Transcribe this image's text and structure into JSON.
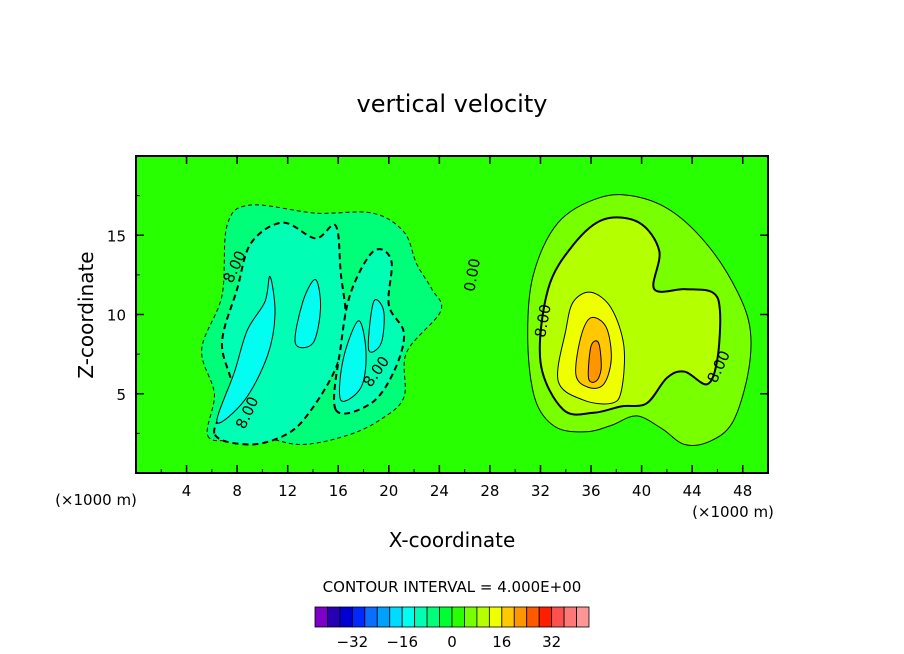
{
  "chart_data": {
    "type": "heatmap",
    "title": "vertical velocity",
    "xlabel": "X-coordinate",
    "ylabel": "Z-coordinate",
    "x_unit_label": "(×1000 m)",
    "x_unit_label_right": "(×1000 m)",
    "xlim": [
      0,
      50
    ],
    "ylim": [
      0,
      20
    ],
    "x_ticks": [
      4,
      8,
      12,
      16,
      20,
      24,
      28,
      32,
      36,
      40,
      44,
      48
    ],
    "y_ticks": [
      5,
      10,
      15
    ],
    "contour_interval_text": "CONTOUR INTERVAL = 4.000E+00",
    "contour_labels": [
      {
        "text": "8.00",
        "x": 7.8,
        "y": 13.0,
        "angle": -65
      },
      {
        "text": "0.00",
        "x": 26.6,
        "y": 12.5,
        "angle": -80
      },
      {
        "text": "8.00",
        "x": 32.2,
        "y": 9.6,
        "angle": -80
      },
      {
        "text": "8.00",
        "x": 19.0,
        "y": 6.4,
        "angle": -55
      },
      {
        "text": "8.00",
        "x": 8.8,
        "y": 3.8,
        "angle": -65
      },
      {
        "text": "8.00",
        "x": 46.1,
        "y": 6.7,
        "angle": -65
      }
    ],
    "colorbar": {
      "colors": [
        "#7d00c8",
        "#2800b4",
        "#0000d2",
        "#0028ff",
        "#0a6eff",
        "#00a0ff",
        "#00dcff",
        "#00fff0",
        "#00ffb4",
        "#00ff78",
        "#00ff32",
        "#28ff00",
        "#78ff00",
        "#b4ff00",
        "#f0ff00",
        "#ffc800",
        "#ff9600",
        "#ff5a00",
        "#ff1e00",
        "#ff5050",
        "#ff7878",
        "#ff9696"
      ],
      "tick_labels": [
        "-32",
        "-16",
        "0",
        "16",
        "32"
      ],
      "tick_values": [
        -32,
        -16,
        0,
        16,
        32
      ],
      "range": [
        -44,
        44
      ]
    },
    "regions": [
      {
        "name": "downdraft-envelope",
        "value": -4,
        "color": "#00ff78",
        "outline": "dashed-thin",
        "polygon": [
          [
            5.8,
            2.2
          ],
          [
            6.2,
            5.0
          ],
          [
            5.2,
            7.8
          ],
          [
            6.8,
            11.2
          ],
          [
            7.2,
            15.6
          ],
          [
            9.0,
            16.9
          ],
          [
            14.2,
            16.4
          ],
          [
            18.7,
            16.4
          ],
          [
            21.2,
            15.2
          ],
          [
            22.2,
            13.2
          ],
          [
            23.4,
            11.6
          ],
          [
            24.1,
            10.2
          ],
          [
            21.4,
            7.6
          ],
          [
            21.2,
            4.8
          ],
          [
            19.4,
            3.4
          ],
          [
            16.8,
            2.4
          ],
          [
            13.1,
            1.8
          ],
          [
            9.6,
            2.3
          ]
        ]
      },
      {
        "name": "downdraft-8",
        "value": -8,
        "color": "#00ffb4",
        "outline": "dashed-thick",
        "polygon": [
          [
            6.2,
            2.5
          ],
          [
            7.6,
            5.2
          ],
          [
            6.8,
            8.2
          ],
          [
            8.0,
            11.6
          ],
          [
            9.1,
            14.5
          ],
          [
            11.6,
            15.8
          ],
          [
            14.2,
            14.8
          ],
          [
            15.8,
            15.6
          ],
          [
            16.2,
            12.6
          ],
          [
            16.6,
            9.4
          ],
          [
            15.8,
            6.6
          ],
          [
            13.6,
            3.7
          ],
          [
            11.8,
            2.4
          ],
          [
            9.0,
            1.8
          ]
        ]
      },
      {
        "name": "downdraft-8b",
        "value": -8,
        "color": "#00ffb4",
        "outline": "dashed-thick",
        "polygon": [
          [
            15.8,
            4.0
          ],
          [
            16.2,
            8.0
          ],
          [
            17.0,
            11.4
          ],
          [
            18.8,
            14.0
          ],
          [
            20.2,
            13.4
          ],
          [
            20.0,
            10.6
          ],
          [
            21.2,
            8.8
          ],
          [
            20.4,
            6.4
          ],
          [
            18.6,
            4.4
          ]
        ]
      },
      {
        "name": "downdraft-12a",
        "value": -12,
        "color": "#00fff0",
        "outline": "thin",
        "polygon": [
          [
            6.4,
            3.2
          ],
          [
            7.8,
            6.4
          ],
          [
            8.8,
            9.0
          ],
          [
            10.2,
            10.8
          ],
          [
            10.6,
            12.4
          ],
          [
            11.0,
            10.0
          ],
          [
            10.4,
            7.4
          ],
          [
            8.6,
            4.6
          ]
        ]
      },
      {
        "name": "downdraft-12b",
        "value": -12,
        "color": "#00fff0",
        "outline": "thin",
        "polygon": [
          [
            12.6,
            8.2
          ],
          [
            13.2,
            10.8
          ],
          [
            14.2,
            12.2
          ],
          [
            14.6,
            10.4
          ],
          [
            14.0,
            8.2
          ]
        ]
      },
      {
        "name": "downdraft-12c",
        "value": -12,
        "color": "#00fff0",
        "outline": "thin",
        "polygon": [
          [
            16.2,
            4.6
          ],
          [
            16.4,
            7.2
          ],
          [
            17.6,
            9.6
          ],
          [
            18.2,
            7.6
          ],
          [
            17.8,
            5.4
          ]
        ]
      },
      {
        "name": "downdraft-12d",
        "value": -12,
        "color": "#00fff0",
        "outline": "thin",
        "polygon": [
          [
            18.4,
            7.8
          ],
          [
            18.8,
            10.8
          ],
          [
            19.6,
            10.2
          ],
          [
            19.4,
            8.2
          ]
        ]
      },
      {
        "name": "updraft-envelope",
        "value": 4,
        "color": "#78ff00",
        "outline": "thin",
        "polygon": [
          [
            31.0,
            8.2
          ],
          [
            31.4,
            12.4
          ],
          [
            33.4,
            15.8
          ],
          [
            36.8,
            17.4
          ],
          [
            39.8,
            17.4
          ],
          [
            42.6,
            16.4
          ],
          [
            45.4,
            14.2
          ],
          [
            47.6,
            11.4
          ],
          [
            48.6,
            9.0
          ],
          [
            48.4,
            6.2
          ],
          [
            47.2,
            3.2
          ],
          [
            45.4,
            2.0
          ],
          [
            43.4,
            1.8
          ],
          [
            41.6,
            2.8
          ],
          [
            39.6,
            3.6
          ],
          [
            37.6,
            3.0
          ],
          [
            35.6,
            2.6
          ],
          [
            33.2,
            2.9
          ],
          [
            31.6,
            4.6
          ]
        ]
      },
      {
        "name": "updraft-8",
        "value": 8,
        "color": "#b4ff00",
        "outline": "thick",
        "polygon": [
          [
            32.0,
            7.0
          ],
          [
            32.6,
            11.6
          ],
          [
            34.6,
            14.4
          ],
          [
            37.0,
            16.0
          ],
          [
            39.8,
            15.8
          ],
          [
            41.4,
            14.0
          ],
          [
            41.0,
            11.6
          ],
          [
            43.4,
            11.6
          ],
          [
            45.6,
            11.4
          ],
          [
            46.2,
            10.2
          ],
          [
            46.0,
            7.2
          ],
          [
            45.2,
            5.6
          ],
          [
            43.4,
            6.4
          ],
          [
            42.0,
            6.0
          ],
          [
            40.4,
            4.4
          ],
          [
            38.4,
            4.2
          ],
          [
            36.2,
            3.8
          ],
          [
            33.8,
            4.0
          ]
        ]
      },
      {
        "name": "updraft-12",
        "value": 12,
        "color": "#f0ff00",
        "outline": "thin",
        "polygon": [
          [
            33.4,
            5.8
          ],
          [
            34.0,
            9.0
          ],
          [
            34.6,
            10.8
          ],
          [
            36.0,
            11.4
          ],
          [
            37.6,
            10.4
          ],
          [
            38.6,
            8.0
          ],
          [
            38.4,
            5.2
          ],
          [
            37.6,
            4.4
          ],
          [
            35.4,
            4.6
          ]
        ]
      },
      {
        "name": "updraft-16",
        "value": 16,
        "color": "#ffc800",
        "outline": "thin",
        "polygon": [
          [
            34.8,
            6.2
          ],
          [
            35.2,
            8.6
          ],
          [
            36.0,
            9.8
          ],
          [
            37.2,
            9.2
          ],
          [
            37.6,
            7.2
          ],
          [
            37.0,
            5.6
          ],
          [
            35.8,
            5.4
          ]
        ]
      },
      {
        "name": "updraft-20",
        "value": 20,
        "color": "#ff9600",
        "outline": "thin",
        "polygon": [
          [
            35.8,
            6.0
          ],
          [
            36.0,
            8.0
          ],
          [
            36.6,
            8.2
          ],
          [
            36.8,
            6.6
          ],
          [
            36.4,
            5.8
          ]
        ]
      }
    ]
  }
}
